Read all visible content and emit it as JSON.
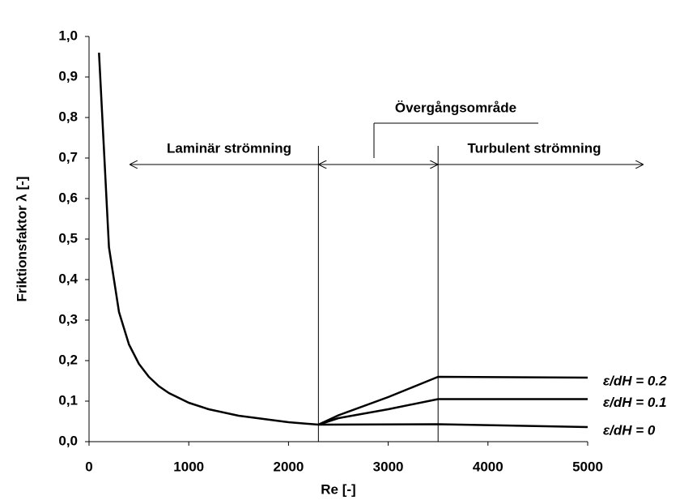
{
  "chart_data": {
    "type": "line",
    "xlabel": "Re [-]",
    "ylabel": "Friktionsfaktor λ [-]",
    "xlim": [
      0,
      5000
    ],
    "xticks": [
      0,
      1000,
      2000,
      3000,
      4000,
      5000
    ],
    "ylim": [
      0,
      1
    ],
    "yticks": [
      {
        "value": 0,
        "label": "0,0"
      },
      {
        "value": 0.1,
        "label": "0,1"
      },
      {
        "value": 0.2,
        "label": "0,2"
      },
      {
        "value": 0.3,
        "label": "0,3"
      },
      {
        "value": 0.4,
        "label": "0,4"
      },
      {
        "value": 0.5,
        "label": "0,5"
      },
      {
        "value": 0.6,
        "label": "0,6"
      },
      {
        "value": 0.7,
        "label": "0,7"
      },
      {
        "value": 0.8,
        "label": "0,8"
      },
      {
        "value": 0.9,
        "label": "0,9"
      },
      {
        "value": 1,
        "label": "1,0"
      }
    ],
    "series": [
      {
        "color": "#000000",
        "x": [
          100,
          200,
          300,
          400,
          500,
          600,
          700,
          800,
          1000,
          1200,
          1500,
          2000,
          2300
        ],
        "values": [
          0.96,
          0.48,
          0.32,
          0.24,
          0.192,
          0.16,
          0.137,
          0.12,
          0.096,
          0.08,
          0.064,
          0.048,
          0.042
        ]
      },
      {
        "name": "ε/dH = 0.2",
        "color": "#000000",
        "x": [
          2300,
          2500,
          3000,
          3300,
          3500,
          5000
        ],
        "values": [
          0.042,
          0.065,
          0.11,
          0.14,
          0.16,
          0.158
        ]
      },
      {
        "name": "ε/dH = 0.1",
        "color": "#000000",
        "x": [
          2300,
          2500,
          3000,
          3500,
          5000
        ],
        "values": [
          0.042,
          0.058,
          0.08,
          0.105,
          0.105
        ]
      },
      {
        "name": "ε/dH = 0",
        "color": "#000000",
        "x": [
          2300,
          3500,
          5000
        ],
        "values": [
          0.042,
          0.043,
          0.036
        ]
      }
    ],
    "vlines": [
      2300,
      3500
    ],
    "annotations": [
      "Laminär strömning",
      "Övergångsområde",
      "Turbulent strömning"
    ]
  }
}
